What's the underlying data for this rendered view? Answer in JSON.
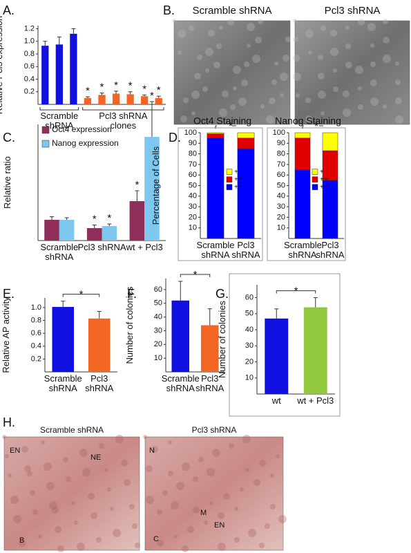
{
  "panel_labels": [
    "A.",
    "B.",
    "C.",
    "D.",
    "E.",
    "F.",
    "G.",
    "H."
  ],
  "images": [
    {
      "caption": "Scramble shRNA"
    },
    {
      "caption": "Pcl3 shRNA"
    },
    {
      "caption": "Scramble shRNA",
      "labels": [
        "EN",
        "NE",
        "B"
      ]
    },
    {
      "caption": "Pcl3 shRNA",
      "labels": [
        "N",
        "M",
        "EN",
        "C"
      ]
    }
  ],
  "chart_data": [
    {
      "type": "bar",
      "ylabel": "Relative Pcl3 expression",
      "categories": [
        null,
        null,
        null,
        null,
        null,
        null,
        null,
        null,
        null
      ],
      "values": [
        0.93,
        0.95,
        1.12,
        0.1,
        0.15,
        0.17,
        0.16,
        0.13,
        0.1
      ],
      "errors": [
        0.07,
        0.12,
        0.08,
        0.02,
        0.03,
        0.04,
        0.04,
        0.02,
        0.03
      ],
      "colors": [
        "#1010e0",
        "#1010e0",
        "#1010e0",
        "#f26522",
        "#f26522",
        "#f26522",
        "#f26522",
        "#f26522",
        "#f26522"
      ],
      "bar_marks": [
        null,
        null,
        null,
        "*",
        "*",
        "*",
        "*",
        "*",
        "*"
      ],
      "groups": [
        "Scramble shRNA",
        "Pcl3 shRNA clones"
      ],
      "ylim": [
        0,
        1.25
      ],
      "yticks": [
        0.2,
        0.4,
        0.6,
        0.8,
        {
          "value": 1,
          "label": "1.0"
        },
        1.2
      ]
    },
    {
      "type": "bar",
      "ylabel": "Relative ratio",
      "categories": [
        "Scramble shRNA",
        "Pcl3 shRNA",
        "wt + Pcl3"
      ],
      "series": [
        {
          "name": "Oct4 expression",
          "color": "#8e2f5a",
          "values": [
            1,
            0.6,
            1.9
          ],
          "errors": [
            0.15,
            0.15,
            0.5
          ],
          "bar_marks": [
            null,
            "*",
            "*"
          ]
        },
        {
          "name": "Nanog expression",
          "color": "#7ec8f0",
          "values": [
            1,
            0.7,
            5
          ],
          "errors": [
            0.1,
            0.1,
            1.7
          ],
          "bar_marks": [
            null,
            "*",
            "*"
          ]
        }
      ],
      "ylim": [
        0,
        5.6
      ],
      "legend": "upper left"
    },
    {
      "type": "bar",
      "stacked": true,
      "title": "Oct4 Staining",
      "ylabel": "Percentage of Cells",
      "categories": [
        "Scramble shRNA",
        "Pcl3 shRNA"
      ],
      "series": [
        {
          "name": "+++",
          "color": "#0000ff",
          "values": [
            95,
            85
          ]
        },
        {
          "name": "++",
          "color": "#e00000",
          "values": [
            4,
            10
          ]
        },
        {
          "name": "+",
          "color": "#ffff00",
          "values": [
            1,
            5
          ]
        }
      ],
      "ylim": [
        0,
        100
      ],
      "yticks": [
        10,
        20,
        30,
        40,
        50,
        60,
        70,
        80,
        90,
        100
      ],
      "significance": "*"
    },
    {
      "type": "bar",
      "stacked": true,
      "title": "Nanog Staining",
      "categories": [
        "Scramble shRNA",
        "Pcl3 shRNA"
      ],
      "series": [
        {
          "name": "+++",
          "color": "#0000ff",
          "values": [
            65,
            55
          ]
        },
        {
          "name": "++",
          "color": "#e00000",
          "values": [
            30,
            28
          ]
        },
        {
          "name": "+",
          "color": "#ffff00",
          "values": [
            5,
            17
          ]
        }
      ],
      "ylim": [
        0,
        100
      ],
      "yticks": [
        10,
        20,
        30,
        40,
        50,
        60,
        70,
        80,
        90,
        100
      ],
      "significance": "*"
    },
    {
      "type": "bar",
      "ylabel": "Relative AP activity",
      "categories": [
        "Scramble shRNA",
        "Pcl3 shRNA"
      ],
      "values": [
        1.01,
        0.83
      ],
      "errors": [
        0.09,
        0.11
      ],
      "colors": [
        "#1010e0",
        "#f26522"
      ],
      "ylim": [
        0,
        1.15
      ],
      "yticks": [
        0.2,
        0.4,
        0.6,
        0.8,
        {
          "value": 1,
          "label": "1.0"
        }
      ],
      "significance": "*"
    },
    {
      "type": "bar",
      "ylabel": "Number of colonies",
      "categories": [
        "Scramble shRNA",
        "Pcl3 shRNA"
      ],
      "values": [
        52,
        34
      ],
      "errors": [
        14,
        12
      ],
      "colors": [
        "#1010e0",
        "#f26522"
      ],
      "ylim": [
        0,
        68
      ],
      "yticks": [
        10,
        20,
        30,
        40,
        50,
        60
      ],
      "significance": "*"
    },
    {
      "type": "bar",
      "ylabel": "Number of colonies",
      "categories": [
        "wt",
        "wt + Pcl3"
      ],
      "values": [
        47,
        54
      ],
      "errors": [
        6,
        6
      ],
      "colors": [
        "#1010e0",
        "#92c83e"
      ],
      "ylim": [
        0,
        68
      ],
      "yticks": [
        10,
        20,
        30,
        40,
        50,
        60
      ],
      "significance": "*"
    }
  ]
}
